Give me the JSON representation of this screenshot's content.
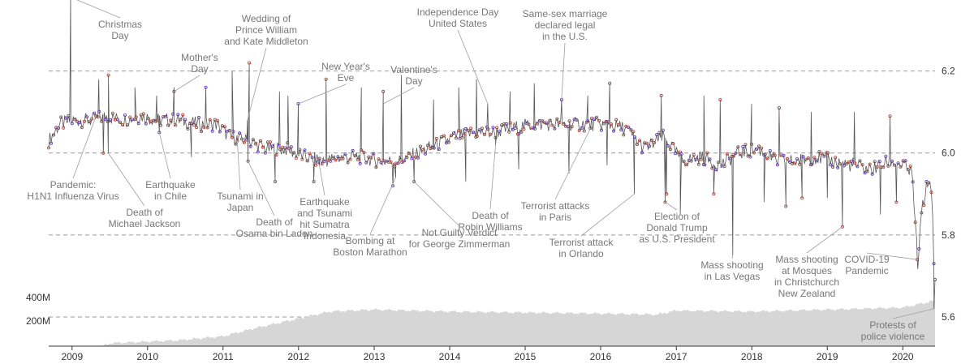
{
  "chart_data": {
    "type": "line",
    "title": "",
    "xlabel": "",
    "ylabel": "",
    "x_range": [
      "2008-09-10",
      "2020-06-05"
    ],
    "x_ticks": [
      "2009",
      "2010",
      "2011",
      "2012",
      "2013",
      "2014",
      "2015",
      "2016",
      "2017",
      "2018",
      "2019",
      "2020"
    ],
    "ylim": [
      5.6,
      6.3
    ],
    "y_ticks": [
      {
        "value": 6.2,
        "label": "6.2"
      },
      {
        "value": 6.0,
        "label": "6.0"
      },
      {
        "value": 5.8,
        "label": "5.8"
      },
      {
        "value": 5.6,
        "label": "5.6"
      }
    ],
    "grid": "dashed horizontal at y ticks",
    "series": [
      {
        "values_by_date": [
          [
            "2008-09-10",
            6.03
          ],
          [
            "2008-11-01",
            6.07
          ],
          [
            "2009-01-15",
            6.08
          ],
          [
            "2009-04-01",
            6.08
          ],
          [
            "2009-06-15",
            6.09
          ],
          [
            "2009-09-01",
            6.08
          ],
          [
            "2009-12-01",
            6.09
          ],
          [
            "2010-03-01",
            6.08
          ],
          [
            "2010-06-01",
            6.08
          ],
          [
            "2010-09-01",
            6.07
          ],
          [
            "2010-12-01",
            6.07
          ],
          [
            "2011-02-01",
            6.04
          ],
          [
            "2011-05-01",
            6.03
          ],
          [
            "2011-08-01",
            6.01
          ],
          [
            "2011-11-01",
            6.01
          ],
          [
            "2012-02-01",
            5.99
          ],
          [
            "2012-05-01",
            5.98
          ],
          [
            "2012-08-01",
            5.99
          ],
          [
            "2012-11-01",
            5.99
          ],
          [
            "2013-02-01",
            5.98
          ],
          [
            "2013-05-01",
            5.98
          ],
          [
            "2013-08-01",
            6.0
          ],
          [
            "2013-11-01",
            6.02
          ],
          [
            "2014-02-01",
            6.04
          ],
          [
            "2014-05-01",
            6.05
          ],
          [
            "2014-08-01",
            6.05
          ],
          [
            "2014-11-01",
            6.06
          ],
          [
            "2015-02-01",
            6.07
          ],
          [
            "2015-05-01",
            6.07
          ],
          [
            "2015-08-01",
            6.07
          ],
          [
            "2015-11-01",
            6.07
          ],
          [
            "2016-02-01",
            6.07
          ],
          [
            "2016-05-01",
            6.06
          ],
          [
            "2016-08-01",
            6.01
          ],
          [
            "2016-11-01",
            6.04
          ],
          [
            "2017-02-01",
            5.98
          ],
          [
            "2017-05-01",
            5.99
          ],
          [
            "2017-08-01",
            5.97
          ],
          [
            "2017-11-01",
            6.0
          ],
          [
            "2018-02-01",
            6.01
          ],
          [
            "2018-05-01",
            5.98
          ],
          [
            "2018-08-01",
            5.98
          ],
          [
            "2018-11-01",
            5.99
          ],
          [
            "2019-02-01",
            5.98
          ],
          [
            "2019-05-01",
            5.97
          ],
          [
            "2019-08-01",
            5.96
          ],
          [
            "2019-11-01",
            5.98
          ],
          [
            "2020-01-01",
            5.97
          ],
          [
            "2020-02-15",
            5.95
          ],
          [
            "2020-03-15",
            5.72
          ],
          [
            "2020-04-01",
            5.86
          ],
          [
            "2020-05-01",
            5.93
          ],
          [
            "2020-05-20",
            5.92
          ],
          [
            "2020-06-01",
            5.68
          ]
        ]
      }
    ],
    "spikes": [
      [
        "2009-05-10",
        6.18
      ],
      [
        "2009-06-26",
        6.19
      ],
      [
        "2009-11-01",
        6.16
      ],
      [
        "2010-02-14",
        6.14
      ],
      [
        "2010-05-09",
        6.16
      ],
      [
        "2010-10-10",
        6.16
      ],
      [
        "2011-02-14",
        6.2
      ],
      [
        "2011-05-08",
        6.22
      ],
      [
        "2011-10-01",
        6.15
      ],
      [
        "2011-11-11",
        6.14
      ],
      [
        "2012-05-13",
        6.18
      ],
      [
        "2012-10-31",
        6.16
      ],
      [
        "2013-02-14",
        6.15
      ],
      [
        "2013-05-12",
        6.19
      ],
      [
        "2013-10-15",
        6.13
      ],
      [
        "2014-02-14",
        6.16
      ],
      [
        "2014-05-11",
        6.18
      ],
      [
        "2014-10-20",
        6.15
      ],
      [
        "2015-02-14",
        6.17
      ],
      [
        "2015-10-31",
        6.14
      ],
      [
        "2016-02-14",
        6.17
      ],
      [
        "2016-10-20",
        6.14
      ],
      [
        "2017-05-14",
        6.14
      ],
      [
        "2017-08-01",
        6.13
      ],
      [
        "2017-12-31",
        6.12
      ],
      [
        "2018-05-13",
        6.11
      ],
      [
        "2018-10-15",
        6.1
      ],
      [
        "2019-05-12",
        6.1
      ],
      [
        "2019-10-31",
        6.09
      ]
    ],
    "dips": [
      [
        "2009-06-01",
        6.0
      ],
      [
        "2010-08-01",
        5.99
      ],
      [
        "2011-09-10",
        5.93
      ],
      [
        "2012-03-15",
        5.93
      ],
      [
        "2013-04-01",
        5.92
      ],
      [
        "2014-03-20",
        5.93
      ],
      [
        "2014-12-01",
        5.96
      ],
      [
        "2015-08-01",
        5.95
      ],
      [
        "2016-02-01",
        5.97
      ],
      [
        "2016-11-15",
        5.9
      ],
      [
        "2017-01-20",
        5.85
      ],
      [
        "2017-07-01",
        5.9
      ],
      [
        "2018-03-01",
        5.88
      ],
      [
        "2018-06-15",
        5.87
      ],
      [
        "2018-09-01",
        5.89
      ],
      [
        "2019-01-01",
        5.89
      ],
      [
        "2019-09-15",
        5.85
      ],
      [
        "2019-12-01",
        5.88
      ]
    ],
    "events": [
      {
        "label": [
          "Christmas",
          "Day"
        ],
        "date": "2008-12-25",
        "value": 6.38,
        "line_to": "below"
      },
      {
        "label": [
          "Pandemic:",
          "H1N1 Influenza Virus"
        ],
        "date": "2009-04-27",
        "value": 6.09
      },
      {
        "label": [
          "Death of",
          "Michael Jackson"
        ],
        "date": "2009-06-25",
        "value": 6.0
      },
      {
        "label": [
          "Mother's",
          "Day"
        ],
        "date": "2010-05-09",
        "value": 6.15
      },
      {
        "label": [
          "Earthquake",
          "in Chile"
        ],
        "date": "2010-02-27",
        "value": 6.05
      },
      {
        "label": [
          "Wedding of",
          "Prince William",
          "and Kate Middleton"
        ],
        "date": "2011-04-29",
        "value": 6.08
      },
      {
        "label": [
          "Tsunami in",
          "Japan"
        ],
        "date": "2011-03-11",
        "value": 6.03
      },
      {
        "label": [
          "Death of",
          "Osama bin Laden"
        ],
        "date": "2011-05-02",
        "value": 5.98
      },
      {
        "label": [
          "New Year's",
          "Eve"
        ],
        "date": "2011-12-31",
        "value": 6.12
      },
      {
        "label": [
          "Earthquake",
          "and Tsunami",
          "hit Sumatra",
          "Indonesia"
        ],
        "date": "2012-04-11",
        "value": 5.97
      },
      {
        "label": [
          "Valentine's",
          "Day"
        ],
        "date": "2013-02-14",
        "value": 6.12
      },
      {
        "label": [
          "Bombing at",
          "Boston Marathon"
        ],
        "date": "2013-04-15",
        "value": 5.94
      },
      {
        "label": [
          "Independence Day",
          "United States"
        ],
        "date": "2014-07-04",
        "value": 6.12
      },
      {
        "label": [
          "Not Guilty Verdict",
          "for George Zimmerman"
        ],
        "date": "2013-07-13",
        "value": 5.93
      },
      {
        "label": [
          "Death of",
          "Robin Williams"
        ],
        "date": "2014-08-11",
        "value": 6.02
      },
      {
        "label": [
          "Same-sex marriage",
          "declared legal",
          "in the U.S."
        ],
        "date": "2015-06-26",
        "value": 6.13
      },
      {
        "label": [
          "Terrorist attacks",
          "in Paris"
        ],
        "date": "2015-11-13",
        "value": 6.06
      },
      {
        "label": [
          "Terrorist attack",
          "in Orlando"
        ],
        "date": "2016-06-12",
        "value": 5.9
      },
      {
        "label": [
          "Election of",
          "Donald Trump",
          "as U.S. President"
        ],
        "date": "2016-11-08",
        "value": 5.88
      },
      {
        "label": [
          "Mass shooting",
          "in Las Vegas"
        ],
        "date": "2017-10-01",
        "value": 5.75
      },
      {
        "label": [
          "Mass shooting",
          "at Mosques",
          "in Christchurch",
          "New Zealand"
        ],
        "date": "2019-03-15",
        "value": 5.82
      },
      {
        "label": [
          "COVID-19",
          "Pandemic"
        ],
        "date": "2020-03-11",
        "value": 5.74
      },
      {
        "label": [
          "Protests of",
          "police violence"
        ],
        "date": "2020-05-31",
        "value": 5.62
      }
    ],
    "volume": {
      "axis_labels": [
        "400M",
        "200M"
      ],
      "values_by_date": [
        [
          "2008-09-10",
          0
        ],
        [
          "2009-06-01",
          0
        ],
        [
          "2009-07-01",
          15
        ],
        [
          "2010-06-01",
          30
        ],
        [
          "2011-01-01",
          50
        ],
        [
          "2011-06-01",
          90
        ],
        [
          "2012-01-01",
          140
        ],
        [
          "2012-06-01",
          175
        ],
        [
          "2013-01-01",
          185
        ],
        [
          "2014-01-01",
          175
        ],
        [
          "2015-01-01",
          170
        ],
        [
          "2016-01-01",
          165
        ],
        [
          "2016-10-01",
          160
        ],
        [
          "2017-01-01",
          180
        ],
        [
          "2018-01-01",
          175
        ],
        [
          "2019-01-01",
          185
        ],
        [
          "2020-01-01",
          195
        ],
        [
          "2020-06-05",
          230
        ]
      ]
    }
  }
}
